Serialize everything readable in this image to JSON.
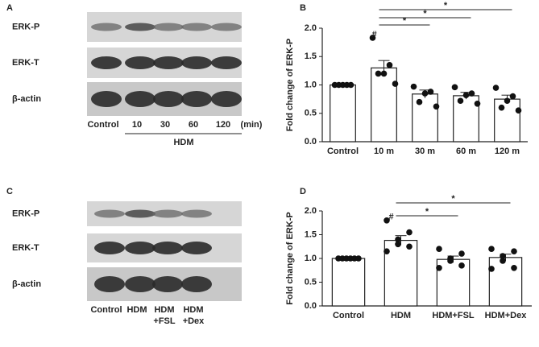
{
  "blots": [
    {
      "panel": "A",
      "rows": [
        "ERK-P",
        "ERK-T",
        "β-actin"
      ],
      "lanes": [
        [
          "Control"
        ],
        [
          "10"
        ],
        [
          "30"
        ],
        [
          "60"
        ],
        [
          "120"
        ]
      ],
      "unit": "(min)",
      "group": "HDM"
    },
    {
      "panel": "C",
      "rows": [
        "ERK-P",
        "ERK-T",
        "β-actin"
      ],
      "lanes": [
        [
          "Control"
        ],
        [
          "HDM"
        ],
        [
          "HDM",
          "+FSL"
        ],
        [
          "HDM",
          "+Dex"
        ]
      ]
    }
  ],
  "chart_data": [
    {
      "type": "bar",
      "panel": "B",
      "ylabel": "Fold change of ERK-P",
      "categories": [
        "Control",
        "10 m",
        "30 m",
        "60 m",
        "120 m"
      ],
      "values": [
        1.0,
        1.3,
        0.84,
        0.81,
        0.75
      ],
      "errors": [
        0,
        0.13,
        0.07,
        0.06,
        0.07
      ],
      "points": [
        [
          1.0,
          1.0,
          1.0,
          1.0,
          1.0
        ],
        [
          1.83,
          1.35,
          1.2,
          1.2,
          1.02
        ],
        [
          0.97,
          0.88,
          0.85,
          0.7,
          0.62
        ],
        [
          0.96,
          0.85,
          0.82,
          0.72,
          0.67
        ],
        [
          0.95,
          0.8,
          0.72,
          0.6,
          0.55
        ]
      ],
      "ylim": [
        0,
        2.0
      ],
      "yticks": [
        {
          "value": 0,
          "label": "0.0"
        },
        {
          "value": 0.5,
          "label": "0.5"
        },
        {
          "value": 1,
          "label": "1.0"
        },
        {
          "value": 1.5,
          "label": "1.5"
        },
        {
          "value": 2,
          "label": "2.0"
        }
      ],
      "marker": {
        "text": "#",
        "at": 1
      },
      "comparisons": [
        {
          "text": "*",
          "from": 1,
          "to": 2
        },
        {
          "text": "*",
          "from": 1,
          "to": 3
        },
        {
          "text": "*",
          "from": 1,
          "to": 4
        }
      ]
    },
    {
      "type": "bar",
      "panel": "D",
      "ylabel": "Fold change of ERK-P",
      "categories": [
        "Control",
        "HDM",
        "HDM+FSL",
        "HDM+Dex"
      ],
      "values": [
        1.0,
        1.38,
        0.98,
        1.02
      ],
      "errors": [
        0,
        0.1,
        0.07,
        0.07
      ],
      "points": [
        [
          1.0,
          1.0,
          1.0,
          1.0,
          1.0,
          1.0
        ],
        [
          1.8,
          1.55,
          1.4,
          1.3,
          1.25,
          1.15
        ],
        [
          1.2,
          1.1,
          1.0,
          0.95,
          0.85,
          0.8
        ],
        [
          1.2,
          1.15,
          1.05,
          0.95,
          0.8,
          0.78
        ]
      ],
      "ylim": [
        0,
        2.0
      ],
      "yticks": [
        {
          "value": 0,
          "label": "0.0"
        },
        {
          "value": 0.5,
          "label": "0.5"
        },
        {
          "value": 1,
          "label": "1.0"
        },
        {
          "value": 1.5,
          "label": "1.5"
        },
        {
          "value": 2,
          "label": "2.0"
        }
      ],
      "marker": {
        "text": "#",
        "at": 1
      },
      "comparisons": [
        {
          "text": "*",
          "from": 1,
          "to": 2
        },
        {
          "text": "*",
          "from": 1,
          "to": 3
        }
      ]
    }
  ]
}
